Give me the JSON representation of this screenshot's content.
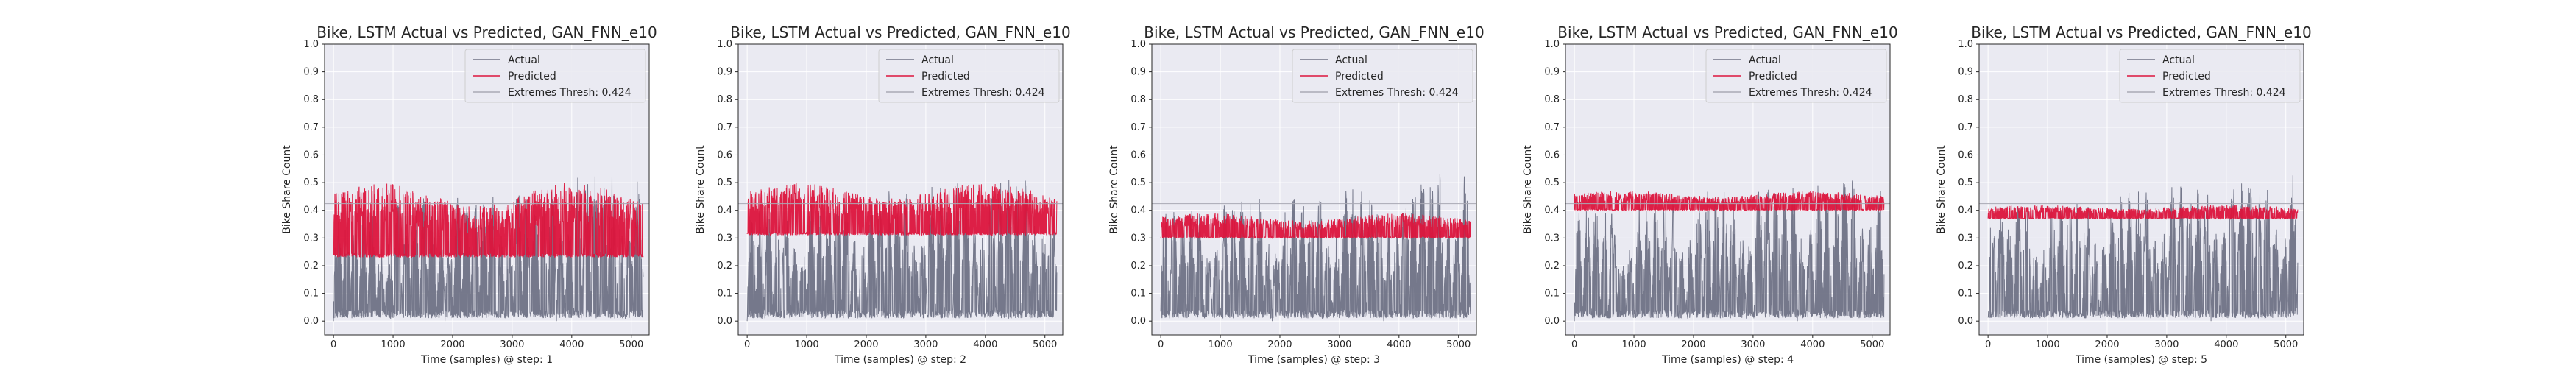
{
  "colors": {
    "panel_bg": "#eaeaf2",
    "grid": "#ffffff",
    "actual": "#6f7285",
    "predicted": "#dc143c",
    "threshold": "#a9a9b4"
  },
  "chart_data": [
    {
      "type": "line",
      "title": "Bike, LSTM Actual vs Predicted, GAN_FNN_e10",
      "xlabel": "Time (samples) @ step: 1",
      "ylabel": "Bike Share Count",
      "xlim": [
        -150,
        5300
      ],
      "ylim": [
        -0.05,
        1.0
      ],
      "xticks": [
        0,
        1000,
        2000,
        3000,
        4000,
        5000
      ],
      "xtick_labels": [
        "0",
        "1000",
        "2000",
        "3000",
        "4000",
        "5000"
      ],
      "yticks": [
        0.0,
        0.1,
        0.2,
        0.3,
        0.4,
        0.5,
        0.6,
        0.7,
        0.8,
        0.9,
        1.0
      ],
      "ytick_labels": [
        "0.0",
        "0.1",
        "0.2",
        "0.3",
        "0.4",
        "0.5",
        "0.6",
        "0.7",
        "0.8",
        "0.9",
        "1.0"
      ],
      "grid": true,
      "legend_position": "top-right",
      "series": [
        {
          "name": "Actual",
          "x_range": [
            0,
            5200
          ],
          "min": 0.0,
          "approx_daily_peak": 0.6
        },
        {
          "name": "Predicted",
          "x_range": [
            0,
            5200
          ],
          "min": 0.23,
          "approx_daily_peak": 0.5
        },
        {
          "name": "Extremes Thresh: 0.424",
          "y": 0.424
        }
      ]
    },
    {
      "type": "line",
      "title": "Bike, LSTM Actual vs Predicted, GAN_FNN_e10",
      "xlabel": "Time (samples) @ step: 2",
      "ylabel": "Bike Share Count",
      "xlim": [
        -150,
        5300
      ],
      "ylim": [
        -0.05,
        1.0
      ],
      "xticks": [
        0,
        1000,
        2000,
        3000,
        4000,
        5000
      ],
      "xtick_labels": [
        "0",
        "1000",
        "2000",
        "3000",
        "4000",
        "5000"
      ],
      "yticks": [
        0.0,
        0.1,
        0.2,
        0.3,
        0.4,
        0.5,
        0.6,
        0.7,
        0.8,
        0.9,
        1.0
      ],
      "ytick_labels": [
        "0.0",
        "0.1",
        "0.2",
        "0.3",
        "0.4",
        "0.5",
        "0.6",
        "0.7",
        "0.8",
        "0.9",
        "1.0"
      ],
      "grid": true,
      "legend_position": "top-right",
      "series": [
        {
          "name": "Actual",
          "x_range": [
            0,
            5200
          ],
          "min": 0.0,
          "approx_daily_peak": 0.6
        },
        {
          "name": "Predicted",
          "x_range": [
            0,
            5200
          ],
          "min": 0.31,
          "approx_daily_peak": 0.5
        },
        {
          "name": "Extremes Thresh: 0.424",
          "y": 0.424
        }
      ]
    },
    {
      "type": "line",
      "title": "Bike, LSTM Actual vs Predicted, GAN_FNN_e10",
      "xlabel": "Time (samples) @ step: 3",
      "ylabel": "Bike Share Count",
      "xlim": [
        -150,
        5300
      ],
      "ylim": [
        -0.05,
        1.0
      ],
      "xticks": [
        0,
        1000,
        2000,
        3000,
        4000,
        5000
      ],
      "xtick_labels": [
        "0",
        "1000",
        "2000",
        "3000",
        "4000",
        "5000"
      ],
      "yticks": [
        0.0,
        0.1,
        0.2,
        0.3,
        0.4,
        0.5,
        0.6,
        0.7,
        0.8,
        0.9,
        1.0
      ],
      "ytick_labels": [
        "0.0",
        "0.1",
        "0.2",
        "0.3",
        "0.4",
        "0.5",
        "0.6",
        "0.7",
        "0.8",
        "0.9",
        "1.0"
      ],
      "grid": true,
      "legend_position": "top-right",
      "series": [
        {
          "name": "Actual",
          "x_range": [
            0,
            5200
          ],
          "min": 0.0,
          "approx_daily_peak": 0.6
        },
        {
          "name": "Predicted",
          "x_range": [
            0,
            5200
          ],
          "min": 0.3,
          "approx_daily_peak": 0.39
        },
        {
          "name": "Extremes Thresh: 0.424",
          "y": 0.424
        }
      ]
    },
    {
      "type": "line",
      "title": "Bike, LSTM Actual vs Predicted, GAN_FNN_e10",
      "xlabel": "Time (samples) @ step: 4",
      "ylabel": "Bike Share Count",
      "xlim": [
        -150,
        5300
      ],
      "ylim": [
        -0.05,
        1.0
      ],
      "xticks": [
        0,
        1000,
        2000,
        3000,
        4000,
        5000
      ],
      "xtick_labels": [
        "0",
        "1000",
        "2000",
        "3000",
        "4000",
        "5000"
      ],
      "yticks": [
        0.0,
        0.1,
        0.2,
        0.3,
        0.4,
        0.5,
        0.6,
        0.7,
        0.8,
        0.9,
        1.0
      ],
      "ytick_labels": [
        "0.0",
        "0.1",
        "0.2",
        "0.3",
        "0.4",
        "0.5",
        "0.6",
        "0.7",
        "0.8",
        "0.9",
        "1.0"
      ],
      "grid": true,
      "legend_position": "top-right",
      "series": [
        {
          "name": "Actual",
          "x_range": [
            0,
            5200
          ],
          "min": 0.0,
          "approx_daily_peak": 0.6
        },
        {
          "name": "Predicted",
          "x_range": [
            0,
            5200
          ],
          "min": 0.4,
          "approx_daily_peak": 0.47
        },
        {
          "name": "Extremes Thresh: 0.424",
          "y": 0.424
        }
      ]
    },
    {
      "type": "line",
      "title": "Bike, LSTM Actual vs Predicted, GAN_FNN_e10",
      "xlabel": "Time (samples) @ step: 5",
      "ylabel": "Bike Share Count",
      "xlim": [
        -150,
        5300
      ],
      "ylim": [
        -0.05,
        1.0
      ],
      "xticks": [
        0,
        1000,
        2000,
        3000,
        4000,
        5000
      ],
      "xtick_labels": [
        "0",
        "1000",
        "2000",
        "3000",
        "4000",
        "5000"
      ],
      "yticks": [
        0.0,
        0.1,
        0.2,
        0.3,
        0.4,
        0.5,
        0.6,
        0.7,
        0.8,
        0.9,
        1.0
      ],
      "ytick_labels": [
        "0.0",
        "0.1",
        "0.2",
        "0.3",
        "0.4",
        "0.5",
        "0.6",
        "0.7",
        "0.8",
        "0.9",
        "1.0"
      ],
      "grid": true,
      "legend_position": "top-right",
      "series": [
        {
          "name": "Actual",
          "x_range": [
            0,
            5200
          ],
          "min": 0.0,
          "approx_daily_peak": 0.6
        },
        {
          "name": "Predicted",
          "x_range": [
            0,
            5200
          ],
          "min": 0.37,
          "approx_daily_peak": 0.42
        },
        {
          "name": "Extremes Thresh: 0.424",
          "y": 0.424
        }
      ]
    }
  ]
}
